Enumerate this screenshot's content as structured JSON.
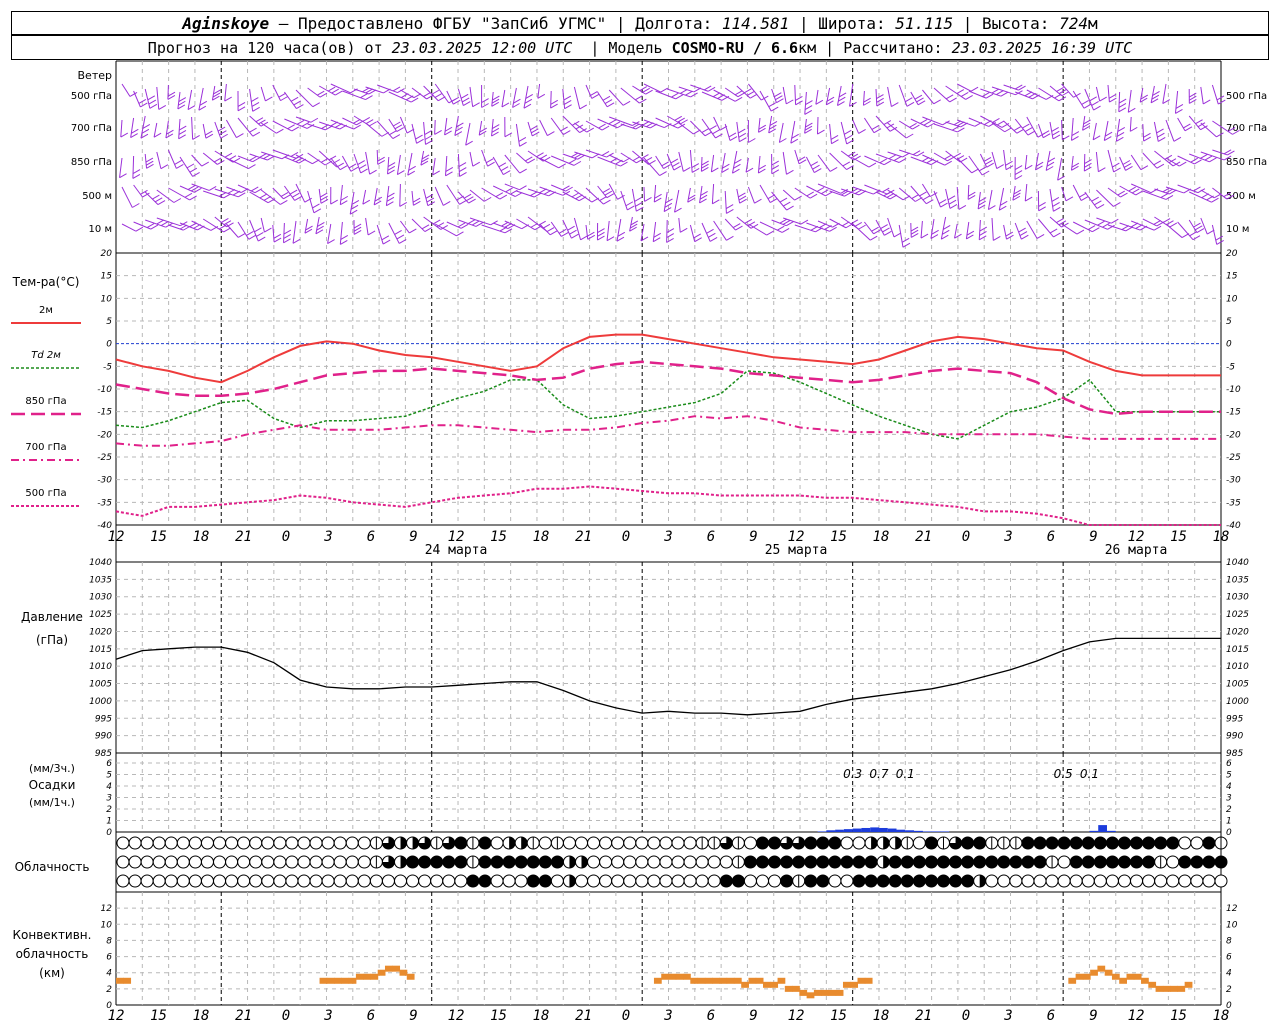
{
  "header": {
    "station": "Aginskoye",
    "provided": "– Предоставлено ФГБУ \"ЗапСиб УГМС\" |",
    "lon_label": "Долгота:",
    "lon_value": "114.581",
    "lat_label": "| Широта:",
    "lat_value": "51.115",
    "alt_label": "| Высота:",
    "alt_value": "724",
    "alt_unit": "м",
    "forecast_label": "Прогноз на 120 часа(ов) от",
    "forecast_start": "23.03.2025 12:00 UTC",
    "model_label": "| Модель",
    "model_name": "COSMO-RU / 6.6",
    "model_unit": "км",
    "calc_label": "| Рассчитано:",
    "calc_time": "23.03.2025 16:39 UTC"
  },
  "time_axis": {
    "hour_labels": [
      "12",
      "15",
      "18",
      "21",
      "0",
      "3",
      "6",
      "9",
      "12",
      "15",
      "18",
      "21",
      "0",
      "3",
      "6",
      "9",
      "12",
      "15",
      "18",
      "21",
      "0",
      "3",
      "6",
      "9",
      "12",
      "15",
      "18"
    ],
    "day_labels": [
      "24 марта",
      "25 марта",
      "26 марта"
    ]
  },
  "wind_panel": {
    "title": "Ветер",
    "levels": [
      "500 гПа",
      "700 гПа",
      "850 гПа",
      "500 м",
      "10  м"
    ],
    "color": "#9b30d9"
  },
  "chart_data": [
    {
      "type": "line",
      "name": "temperature",
      "title": "Тем-ра(°C)",
      "ylim": [
        -40,
        20
      ],
      "yticks": [
        20,
        15,
        10,
        5,
        0,
        -5,
        -10,
        -15,
        -20,
        -25,
        -30,
        -35,
        -40
      ],
      "x_hours": [
        0,
        3,
        6,
        9,
        12,
        15,
        18,
        21,
        24,
        27,
        30,
        33,
        36,
        39,
        42,
        45,
        48,
        51,
        54,
        57,
        60,
        63,
        66,
        69,
        72,
        75,
        78,
        81,
        84,
        87,
        90,
        93,
        96,
        99,
        102,
        105,
        108,
        111,
        114,
        117,
        120,
        123,
        126
      ],
      "series": [
        {
          "name": "2м",
          "color": "#ee3b3b",
          "values": [
            -3.5,
            -5,
            -6,
            -7.5,
            -8.5,
            -6,
            -3,
            -0.5,
            0.5,
            0,
            -1.5,
            -2.5,
            -3,
            -4,
            -5,
            -6,
            -5,
            -1,
            1.5,
            2,
            2,
            1,
            0,
            -1,
            -2,
            -3,
            -3.5,
            -4,
            -4.5,
            -3.5,
            -1.5,
            0.5,
            1.5,
            1,
            0,
            -1,
            -1.5,
            -4,
            -6,
            -7,
            -7,
            -7,
            -7
          ]
        },
        {
          "name": "Td  2м",
          "color": "#1a8c1a",
          "values": [
            -18,
            -18.5,
            -17,
            -15,
            -13,
            -12.5,
            -16.5,
            -18.5,
            -17,
            -17,
            -16.5,
            -16,
            -14,
            -12,
            -10.5,
            -8,
            -8,
            -13.5,
            -16.5,
            -16,
            -15,
            -14,
            -13,
            -11,
            -6,
            -6.5,
            -8.5,
            -11,
            -13.5,
            -16,
            -18,
            -20,
            -21,
            -18,
            -15,
            -14,
            -12,
            -8,
            -15,
            -15,
            -15,
            -15,
            -15
          ]
        },
        {
          "name": "850 гПа",
          "color": "#e0218a",
          "values": [
            -9,
            -10,
            -11,
            -11.5,
            -11.5,
            -11,
            -10,
            -8.5,
            -7,
            -6.5,
            -6,
            -6,
            -5.5,
            -6,
            -6.5,
            -7,
            -8,
            -7.5,
            -5.5,
            -4.5,
            -4,
            -4.5,
            -5,
            -5.5,
            -6.5,
            -7,
            -7.5,
            -8,
            -8.5,
            -8,
            -7,
            -6,
            -5.5,
            -6,
            -6.5,
            -8.5,
            -12,
            -14.5,
            -15.5,
            -15,
            -15,
            -15,
            -15
          ]
        },
        {
          "name": "700 гПа",
          "color": "#e0218a",
          "values": [
            -22,
            -22.5,
            -22.5,
            -22,
            -21.5,
            -20,
            -19,
            -18,
            -19,
            -19,
            -19,
            -18.5,
            -18,
            -18,
            -18.5,
            -19,
            -19.5,
            -19,
            -19,
            -18.5,
            -17.5,
            -17,
            -16,
            -16.5,
            -16,
            -17,
            -18.5,
            -19,
            -19.5,
            -19.5,
            -19.5,
            -20,
            -20,
            -20,
            -20,
            -20,
            -20.5,
            -21,
            -21,
            -21,
            -21,
            -21,
            -21
          ]
        },
        {
          "name": "500 гПа",
          "color": "#e0218a",
          "values": [
            -37,
            -38,
            -36,
            -36,
            -35.5,
            -35,
            -34.5,
            -33.5,
            -34,
            -35,
            -35.5,
            -36,
            -35,
            -34,
            -33.5,
            -33,
            -32,
            -32,
            -31.5,
            -32,
            -32.5,
            -33,
            -33,
            -33.5,
            -33.5,
            -33.5,
            -33.5,
            -34,
            -34,
            -34.5,
            -35,
            -35.5,
            -36,
            -37,
            -37,
            -37.5,
            -38.5,
            -40,
            -42,
            -42,
            -42,
            -42,
            -42
          ]
        }
      ]
    },
    {
      "type": "line",
      "name": "pressure",
      "title": "Давление",
      "unit": "(гПа)",
      "ylim": [
        985,
        1040
      ],
      "yticks": [
        1040,
        1035,
        1030,
        1025,
        1020,
        1015,
        1010,
        1005,
        1000,
        995,
        990,
        985
      ],
      "x_hours": [
        0,
        3,
        6,
        9,
        12,
        15,
        18,
        21,
        24,
        27,
        30,
        33,
        36,
        39,
        42,
        45,
        48,
        51,
        54,
        57,
        60,
        63,
        66,
        69,
        72,
        75,
        78,
        81,
        84,
        87,
        90,
        93,
        96,
        99,
        102,
        105,
        108,
        111,
        114,
        117,
        120,
        123,
        126
      ],
      "series": [
        {
          "name": "pressure",
          "color": "#000000",
          "values": [
            1012,
            1014.5,
            1015,
            1015.5,
            1015.5,
            1014,
            1011,
            1006,
            1004,
            1003.5,
            1003.5,
            1004,
            1004,
            1004.5,
            1005,
            1005.5,
            1005.5,
            1003,
            1000,
            998,
            996.5,
            997,
            996.5,
            996.5,
            996,
            996.5,
            997,
            999,
            1000.5,
            1001.5,
            1002.5,
            1003.5,
            1005,
            1007,
            1009,
            1011.5,
            1014.5,
            1017,
            1018,
            1018,
            1018,
            1018,
            1018
          ]
        }
      ]
    },
    {
      "type": "bar",
      "name": "precipitation",
      "title": "Осадки",
      "units": [
        "(мм/3ч.)",
        "(мм/1ч.)"
      ],
      "ylim": [
        0,
        6
      ],
      "yticks": [
        6,
        5,
        4,
        3,
        2,
        1,
        0
      ],
      "color": "#1c3cdc",
      "x_hours": [
        81,
        82,
        83,
        84,
        85,
        86,
        87,
        88,
        89,
        90,
        91,
        92,
        93,
        94,
        95,
        112,
        113,
        114
      ],
      "values": [
        0.05,
        0.15,
        0.2,
        0.25,
        0.3,
        0.35,
        0.4,
        0.35,
        0.3,
        0.2,
        0.15,
        0.1,
        0.05,
        0.05,
        0.05,
        0.1,
        0.6,
        0.1
      ],
      "labels_3h": [
        {
          "hour": 84,
          "text": "0.3"
        },
        {
          "hour": 87,
          "text": "0.7"
        },
        {
          "hour": 90,
          "text": "0.1"
        },
        {
          "hour": 108,
          "text": "0.5"
        },
        {
          "hour": 111,
          "text": "0.1"
        }
      ]
    },
    {
      "type": "bar",
      "name": "convective_cloud",
      "title": "Конвективн. облачность",
      "unit": "(км)",
      "ylim": [
        0,
        14
      ],
      "yticks": [
        12,
        10,
        8,
        6,
        4,
        2,
        0
      ],
      "color": "#e88b2e",
      "segments": [
        {
          "h": 0,
          "v": 3
        },
        {
          "h": 1,
          "v": 3
        },
        {
          "h": 28,
          "v": 3
        },
        {
          "h": 29,
          "v": 3
        },
        {
          "h": 30,
          "v": 3
        },
        {
          "h": 31,
          "v": 3
        },
        {
          "h": 32,
          "v": 3
        },
        {
          "h": 33,
          "v": 3.5
        },
        {
          "h": 34,
          "v": 3.5
        },
        {
          "h": 35,
          "v": 3.5
        },
        {
          "h": 36,
          "v": 4
        },
        {
          "h": 37,
          "v": 4.5
        },
        {
          "h": 38,
          "v": 4.5
        },
        {
          "h": 39,
          "v": 4
        },
        {
          "h": 40,
          "v": 3.5
        },
        {
          "h": 74,
          "v": 3
        },
        {
          "h": 75,
          "v": 3.5
        },
        {
          "h": 76,
          "v": 3.5
        },
        {
          "h": 77,
          "v": 3.5
        },
        {
          "h": 78,
          "v": 3.5
        },
        {
          "h": 79,
          "v": 3
        },
        {
          "h": 80,
          "v": 3
        },
        {
          "h": 81,
          "v": 3
        },
        {
          "h": 82,
          "v": 3
        },
        {
          "h": 83,
          "v": 3
        },
        {
          "h": 84,
          "v": 3
        },
        {
          "h": 85,
          "v": 3
        },
        {
          "h": 86,
          "v": 2.5
        },
        {
          "h": 87,
          "v": 3
        },
        {
          "h": 88,
          "v": 3
        },
        {
          "h": 89,
          "v": 2.5
        },
        {
          "h": 90,
          "v": 2.5
        },
        {
          "h": 91,
          "v": 3
        },
        {
          "h": 92,
          "v": 2
        },
        {
          "h": 93,
          "v": 2
        },
        {
          "h": 94,
          "v": 1.5
        },
        {
          "h": 95,
          "v": 1.2
        },
        {
          "h": 96,
          "v": 1.5
        },
        {
          "h": 97,
          "v": 1.5
        },
        {
          "h": 98,
          "v": 1.5
        },
        {
          "h": 99,
          "v": 1.5
        },
        {
          "h": 100,
          "v": 2.5
        },
        {
          "h": 101,
          "v": 2.5
        },
        {
          "h": 102,
          "v": 3
        },
        {
          "h": 103,
          "v": 3
        },
        {
          "h": 131,
          "v": 3
        },
        {
          "h": 132,
          "v": 3.5
        },
        {
          "h": 133,
          "v": 3.5
        },
        {
          "h": 134,
          "v": 4
        },
        {
          "h": 135,
          "v": 4.5
        },
        {
          "h": 136,
          "v": 4
        },
        {
          "h": 137,
          "v": 3.5
        },
        {
          "h": 138,
          "v": 3
        },
        {
          "h": 139,
          "v": 3.5
        },
        {
          "h": 140,
          "v": 3.5
        },
        {
          "h": 141,
          "v": 3
        },
        {
          "h": 142,
          "v": 2.5
        },
        {
          "h": 143,
          "v": 2
        },
        {
          "h": 144,
          "v": 2
        },
        {
          "h": 145,
          "v": 2
        },
        {
          "h": 146,
          "v": 2
        },
        {
          "h": 147,
          "v": 2.5
        }
      ]
    }
  ],
  "cloud_panel": {
    "title": "Облачность",
    "rows": [
      "0000000000000000000001322313414022101000000000001131044334440022210413441114444444444444004111131441200",
      "0000000000000000000001324444414444444220000000000001444444444442444444444444410444444410444444441444124",
      "0000000000000000000000000000044000440200000000000044000414400444444444420000000000000000000044444000444"
    ]
  }
}
